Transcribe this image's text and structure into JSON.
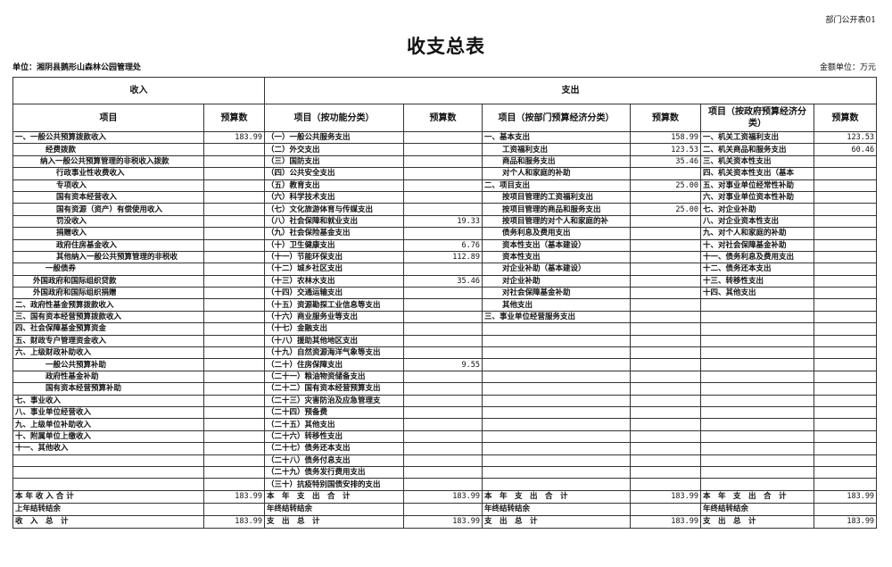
{
  "form_no": "部门公开表01",
  "title": "收支总表",
  "unit": "单位：湘阴县鹅形山森林公园管理处",
  "amount_unit": "金额单位：万元",
  "headers": {
    "income": "收入",
    "expense": "支出",
    "cols": [
      "项目",
      "预算数",
      "项目（按功能分类）",
      "预算数",
      "项目（按部门预算经济分类）",
      "预算数",
      "项目（按政府预算经济分类）",
      "预算数"
    ]
  },
  "row_count": 30,
  "income": [
    {
      "label": "一、一般公共预算拨款收入",
      "value": "183.99",
      "level": 0
    },
    {
      "label": "经费拨款",
      "value": "",
      "level": 2
    },
    {
      "label": "纳入一般公共预算管理的非税收入拨款",
      "value": "",
      "level": 1.5
    },
    {
      "label": "行政事业性收费收入",
      "value": "",
      "level": 3
    },
    {
      "label": "专项收入",
      "value": "",
      "level": 3
    },
    {
      "label": "国有资本经营收入",
      "value": "",
      "level": 3
    },
    {
      "label": "国有资源（资产）有偿使用收入",
      "value": "",
      "level": 3
    },
    {
      "label": "罚没收入",
      "value": "",
      "level": 3
    },
    {
      "label": "捐赠收入",
      "value": "",
      "level": 3
    },
    {
      "label": "政府住房基金收入",
      "value": "",
      "level": 3
    },
    {
      "label": "其他纳入一般公共预算管理的非税收",
      "value": "",
      "level": 3
    },
    {
      "label": "一般债券",
      "value": "",
      "level": 2
    },
    {
      "label": "外国政府和国际组织贷款",
      "value": "",
      "level": 1
    },
    {
      "label": "外国政府和国际组织捐赠",
      "value": "",
      "level": 1
    },
    {
      "label": "二、政府性基金预算拨款收入",
      "value": "",
      "level": 0
    },
    {
      "label": "三、国有资本经营预算拨款收入",
      "value": "",
      "level": 0
    },
    {
      "label": "四、社会保障基金预算资金",
      "value": "",
      "level": 0
    },
    {
      "label": "五、财政专户管理资金收入",
      "value": "",
      "level": 0
    },
    {
      "label": "六、上级财政补助收入",
      "value": "",
      "level": 0
    },
    {
      "label": "一般公共预算补助",
      "value": "",
      "level": 2
    },
    {
      "label": "政府性基金补助",
      "value": "",
      "level": 2
    },
    {
      "label": "国有资本经营预算补助",
      "value": "",
      "level": 2
    },
    {
      "label": "七、事业收入",
      "value": "",
      "level": 0
    },
    {
      "label": "八、事业单位经营收入",
      "value": "",
      "level": 0
    },
    {
      "label": "九、上级单位补助收入",
      "value": "",
      "level": 0
    },
    {
      "label": "十、附属单位上缴收入",
      "value": "",
      "level": 0
    },
    {
      "label": "十一、其他收入",
      "value": "",
      "level": 0
    }
  ],
  "expense_function": [
    {
      "label": "（一）一般公共服务支出",
      "value": ""
    },
    {
      "label": "（二）外交支出",
      "value": ""
    },
    {
      "label": "（三）国防支出",
      "value": ""
    },
    {
      "label": "（四）公共安全支出",
      "value": ""
    },
    {
      "label": "（五）教育支出",
      "value": ""
    },
    {
      "label": "（六）科学技术支出",
      "value": ""
    },
    {
      "label": "（七）文化旅游体育与传媒支出",
      "value": ""
    },
    {
      "label": "（八）社会保障和就业支出",
      "value": "19.33"
    },
    {
      "label": "（九）社会保险基金支出",
      "value": ""
    },
    {
      "label": "（十）卫生健康支出",
      "value": "6.76"
    },
    {
      "label": "（十一）节能环保支出",
      "value": "112.89"
    },
    {
      "label": "（十二）城乡社区支出",
      "value": ""
    },
    {
      "label": "（十三）农林水支出",
      "value": "35.46"
    },
    {
      "label": "（十四）交通运输支出",
      "value": ""
    },
    {
      "label": "（十五）资源勘探工业信息等支出",
      "value": ""
    },
    {
      "label": "（十六）商业服务业等支出",
      "value": ""
    },
    {
      "label": "（十七）金融支出",
      "value": ""
    },
    {
      "label": "（十八）援助其他地区支出",
      "value": ""
    },
    {
      "label": "（十九）自然资源海洋气象等支出",
      "value": ""
    },
    {
      "label": "（二十）住房保障支出",
      "value": "9.55"
    },
    {
      "label": "（二十一）粮油物资储备支出",
      "value": ""
    },
    {
      "label": "（二十二）国有资本经营预算支出",
      "value": ""
    },
    {
      "label": "（二十三）灾害防治及应急管理支",
      "value": ""
    },
    {
      "label": "（二十四）预备费",
      "value": ""
    },
    {
      "label": "（二十五）其他支出",
      "value": ""
    },
    {
      "label": "（二十六）转移性支出",
      "value": ""
    },
    {
      "label": "（二十七）债务还本支出",
      "value": ""
    },
    {
      "label": "（二十八）债务付息支出",
      "value": ""
    },
    {
      "label": "（二十九）债务发行费用支出",
      "value": ""
    },
    {
      "label": "（三十）抗疫特别国债安排的支出",
      "value": ""
    }
  ],
  "expense_dept_econ": [
    {
      "label": "一、基本支出",
      "value": "158.99",
      "level": 0
    },
    {
      "label": "工资福利支出",
      "value": "123.53",
      "level": 2
    },
    {
      "label": "商品和服务支出",
      "value": "35.46",
      "level": 2
    },
    {
      "label": "对个人和家庭的补助",
      "value": "",
      "level": 2
    },
    {
      "label": "二、项目支出",
      "value": "25.00",
      "level": 0
    },
    {
      "label": "按项目管理的工资福利支出",
      "value": "",
      "level": 2
    },
    {
      "label": "按项目管理的商品和服务支出",
      "value": "25.00",
      "level": 2
    },
    {
      "label": "按项目管理的对个人和家庭的补",
      "value": "",
      "level": 2
    },
    {
      "label": "债务利息及费用支出",
      "value": "",
      "level": 2
    },
    {
      "label": "资本性支出（基本建设）",
      "value": "",
      "level": 2
    },
    {
      "label": "资本性支出",
      "value": "",
      "level": 2
    },
    {
      "label": "对企业补助（基本建设）",
      "value": "",
      "level": 2
    },
    {
      "label": "对企业补助",
      "value": "",
      "level": 2
    },
    {
      "label": "对社会保障基金补助",
      "value": "",
      "level": 2
    },
    {
      "label": "其他支出",
      "value": "",
      "level": 2
    },
    {
      "label": "三、事业单位经营服务支出",
      "value": "",
      "level": 0
    }
  ],
  "expense_gov_econ": [
    {
      "label": "一、机关工资福利支出",
      "value": "123.53"
    },
    {
      "label": "二、机关商品和服务支出",
      "value": "60.46"
    },
    {
      "label": "三、机关资本性支出",
      "value": ""
    },
    {
      "label": "四、机关资本性支出（基本",
      "value": ""
    },
    {
      "label": "五、对事业单位经常性补助",
      "value": ""
    },
    {
      "label": "六、对事业单位资本性补助",
      "value": ""
    },
    {
      "label": "七、对企业补助",
      "value": ""
    },
    {
      "label": "八、对企业资本性支出",
      "value": ""
    },
    {
      "label": "九、对个人和家庭的补助",
      "value": ""
    },
    {
      "label": "十、对社会保障基金补助",
      "value": ""
    },
    {
      "label": "十一、债务利息及费用支出",
      "value": ""
    },
    {
      "label": "十二、债务还本支出",
      "value": ""
    },
    {
      "label": "十三、转移性支出",
      "value": ""
    },
    {
      "label": "十四、其他支出",
      "value": ""
    }
  ],
  "totals": [
    {
      "income_label": "本 年 收 入 合 计",
      "income_value": "183.99",
      "func_label": "本　年　支　出　合　计",
      "func_value": "183.99",
      "dept_label": "本　年　支　出　合　计",
      "dept_value": "183.99",
      "gov_label": "本　年　支　出　合　计",
      "gov_value": "183.99"
    },
    {
      "income_label": "上年结转结余",
      "income_value": "",
      "func_label": "年终结转结余",
      "func_value": "",
      "dept_label": "年终结转结余",
      "dept_value": "",
      "gov_label": "年终结转结余",
      "gov_value": ""
    },
    {
      "income_label": "收　入　总　计",
      "income_value": "183.99",
      "func_label": "支　出　总　计",
      "func_value": "183.99",
      "dept_label": "支　出　总　计",
      "dept_value": "183.99",
      "gov_label": "支　出　总　计",
      "gov_value": "183.99"
    }
  ]
}
